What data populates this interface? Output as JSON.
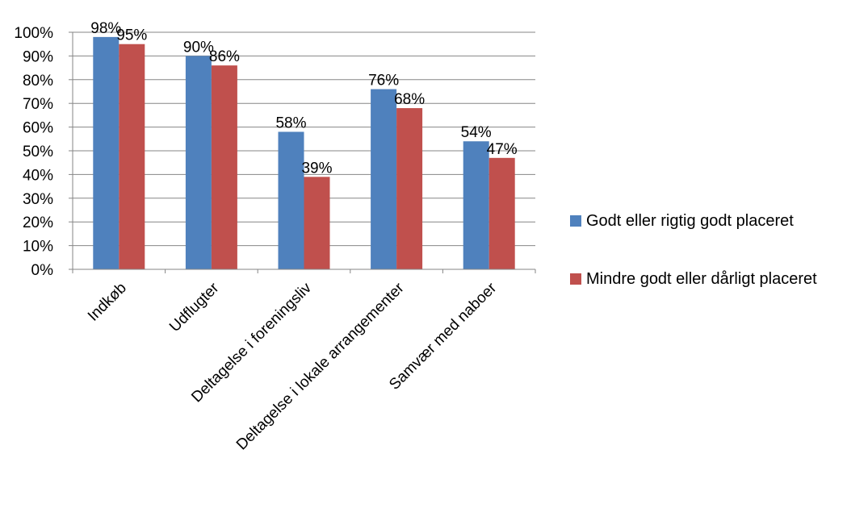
{
  "chart_data": {
    "type": "bar",
    "title": "",
    "xlabel": "",
    "ylabel": "",
    "ylim": [
      0,
      100
    ],
    "y_ticks": [
      "0%",
      "10%",
      "20%",
      "30%",
      "40%",
      "50%",
      "60%",
      "70%",
      "80%",
      "90%",
      "100%"
    ],
    "grid": true,
    "legend_position": "right",
    "categories": [
      "Indkøb",
      "Udflugter",
      "Deltagelse i foreningsliv",
      "Deltagelse i lokale arrangementer",
      "Samvær med naboer"
    ],
    "series": [
      {
        "name": "Godt eller rigtig godt placeret",
        "color": "#4F81BD",
        "values": [
          98,
          90,
          58,
          76,
          54
        ],
        "labels": [
          "98%",
          "90%",
          "58%",
          "76%",
          "54%"
        ]
      },
      {
        "name": "Mindre godt eller dårligt placeret",
        "color": "#C0504D",
        "values": [
          95,
          86,
          39,
          68,
          47
        ],
        "labels": [
          "95%",
          "86%",
          "39%",
          "68%",
          "47%"
        ]
      }
    ]
  }
}
